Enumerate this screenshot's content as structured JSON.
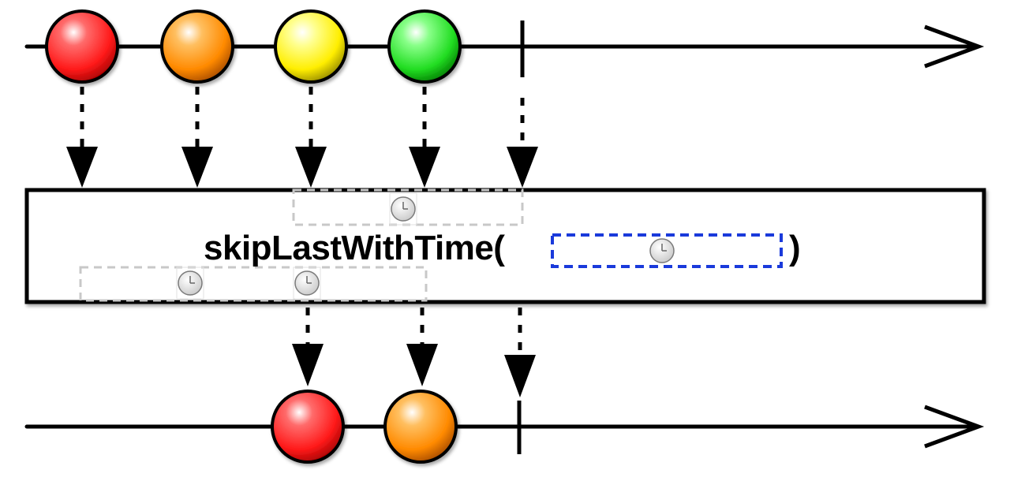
{
  "operator": {
    "name": "skipLastWithTime(",
    "close_paren": ")"
  },
  "source_timeline": {
    "marbles": [
      {
        "color": "red",
        "t": 1
      },
      {
        "color": "orange",
        "t": 2
      },
      {
        "color": "yellow",
        "t": 3
      },
      {
        "color": "green",
        "t": 4
      }
    ],
    "completes": true
  },
  "result_timeline": {
    "marbles": [
      {
        "color": "red",
        "t": 3
      },
      {
        "color": "orange",
        "t": 4
      }
    ],
    "completes": true
  },
  "colors": {
    "red": "#ff1a1a",
    "orange": "#ff8a00",
    "yellow": "#ffee00",
    "green": "#22dd22",
    "window_dash": "#1a3adb",
    "ghost_dash": "#c8c8c8",
    "stroke": "#000000"
  },
  "icons": {
    "clock": "clock-icon"
  }
}
